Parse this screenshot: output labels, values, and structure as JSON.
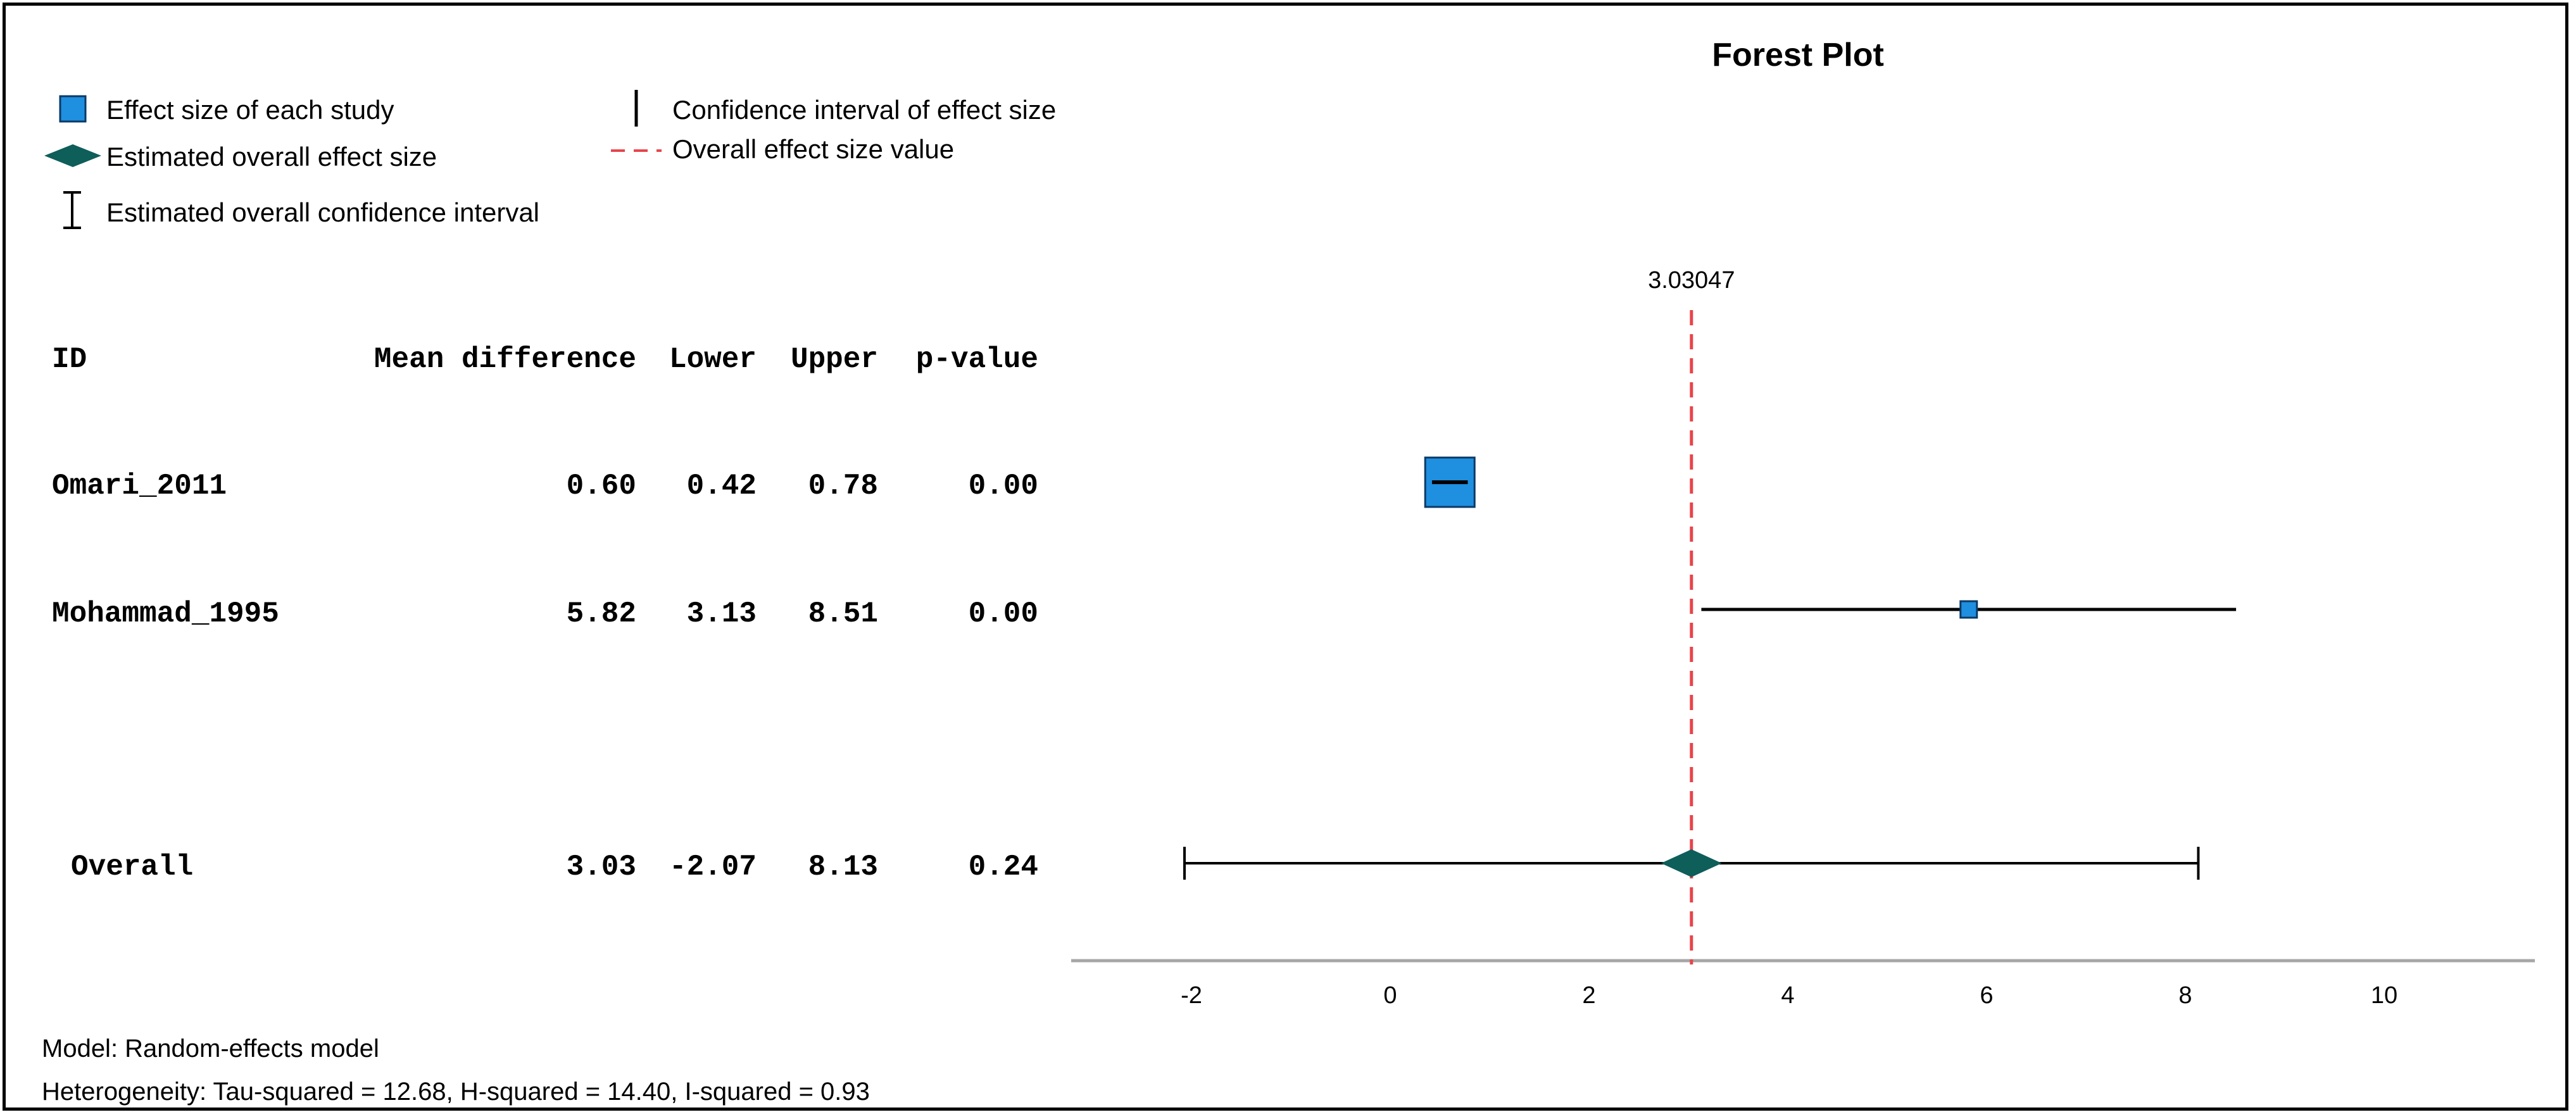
{
  "chart_data": {
    "type": "forest",
    "title": "Forest Plot",
    "legend": {
      "study_effect": "Effect size of each study",
      "overall_effect": "Estimated overall effect size",
      "overall_ci": "Estimated overall confidence interval",
      "study_ci": "Confidence interval of effect size",
      "overall_line": "Overall effect size value"
    },
    "reference_line": {
      "value": 3.03047,
      "label": "3.03047"
    },
    "columns": [
      "ID",
      "Mean difference",
      "Lower",
      "Upper",
      "p-value"
    ],
    "studies": [
      {
        "id": "Omari_2011",
        "mean": 0.6,
        "lower": 0.42,
        "upper": 0.78,
        "p": "0.00",
        "mean_text": "0.60",
        "lower_text": "0.42",
        "upper_text": "0.78"
      },
      {
        "id": "Mohammad_1995",
        "mean": 5.82,
        "lower": 3.13,
        "upper": 8.51,
        "p": "0.00",
        "mean_text": "5.82",
        "lower_text": "3.13",
        "upper_text": "8.51"
      }
    ],
    "overall": {
      "id": "Overall",
      "mean": 3.03,
      "lower": -2.07,
      "upper": 8.13,
      "p": "0.24",
      "mean_text": "3.03",
      "lower_text": "-2.07",
      "upper_text": "8.13"
    },
    "x_ticks": [
      -2,
      0,
      2,
      4,
      6,
      8,
      10
    ],
    "xlim": [
      -3.2,
      11.5
    ]
  },
  "footer": {
    "model": "Model: Random-effects model",
    "heterogeneity": "Heterogeneity: Tau-squared = 12.68, H-squared = 14.40, I-squared = 0.93"
  },
  "colors": {
    "study_square": "#1f8fe0",
    "diamond": "#0e5e5a",
    "ref_line": "#e8444a",
    "axis": "#a6a6a6"
  }
}
